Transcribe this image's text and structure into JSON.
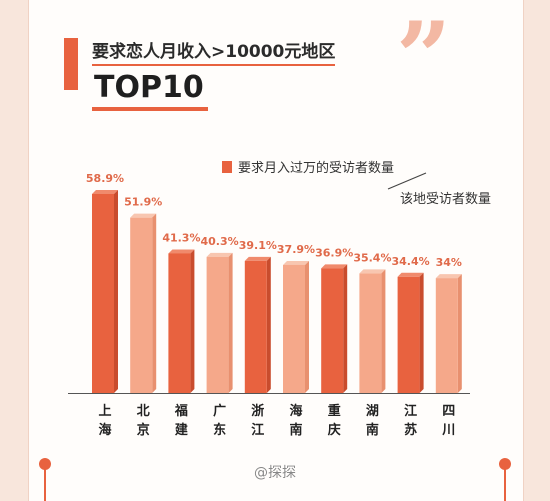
{
  "header": {
    "title_line1": "要求恋人月收入>10000元地区",
    "title_line2": "TOP10",
    "quote": "”"
  },
  "legend": {
    "item1": "要求月入过万的受访者数量",
    "item2": "该地受访者数量"
  },
  "watermark": "@探探",
  "colors": {
    "accent": "#e8623f",
    "light": "#f5a88a",
    "background": "#f8e6dc"
  },
  "chart_data": {
    "type": "bar",
    "categories": [
      "上海",
      "北京",
      "福建",
      "广东",
      "浙江",
      "海南",
      "重庆",
      "湖南",
      "江苏",
      "四川"
    ],
    "values": [
      58.9,
      51.9,
      41.3,
      40.3,
      39.1,
      37.9,
      36.9,
      35.4,
      34.4,
      34
    ],
    "value_labels": [
      "58.9%",
      "51.9%",
      "41.3%",
      "40.3%",
      "39.1%",
      "37.9%",
      "36.9%",
      "35.4%",
      "34.4%",
      "34%"
    ],
    "title": "要求恋人月收入>10000元地区 TOP10",
    "ylim": [
      0,
      60
    ]
  }
}
